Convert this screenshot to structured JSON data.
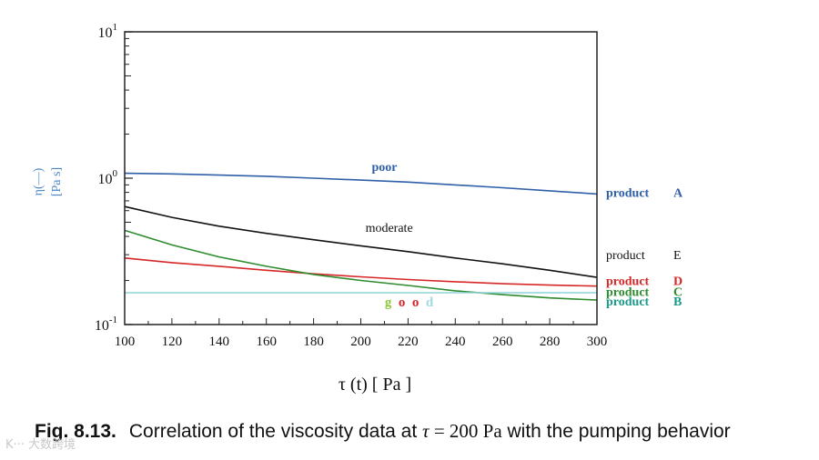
{
  "chart_data": {
    "type": "line",
    "x_scale": "linear",
    "y_scale": "log",
    "xlim": [
      100,
      300
    ],
    "ylim": [
      0.1,
      10
    ],
    "x_ticks": [
      "100",
      "120",
      "140",
      "160",
      "180",
      "200",
      "220",
      "240",
      "260",
      "280",
      "300"
    ],
    "y_ticks": [
      {
        "value": 10,
        "base": "10",
        "exp": "1"
      },
      {
        "value": 1,
        "base": "10",
        "exp": "0"
      },
      {
        "value": 0.1,
        "base": "10",
        "exp": "-1"
      }
    ],
    "ylabel_lines": [
      "η(—)",
      "[Pa s]"
    ],
    "xlabel": "τ  (t)  [ Pa ]",
    "series": [
      {
        "name": "product A",
        "color": "#2f5fa8",
        "x": [
          100,
          120,
          140,
          160,
          180,
          200,
          220,
          240,
          260,
          280,
          300
        ],
        "y": [
          1.08,
          1.07,
          1.05,
          1.03,
          1.0,
          0.97,
          0.94,
          0.9,
          0.86,
          0.82,
          0.78
        ]
      },
      {
        "name": "product E",
        "color": "#111111",
        "x": [
          100,
          120,
          140,
          160,
          180,
          200,
          220,
          240,
          260,
          280,
          300
        ],
        "y": [
          0.64,
          0.54,
          0.47,
          0.42,
          0.38,
          0.345,
          0.315,
          0.285,
          0.26,
          0.235,
          0.21
        ]
      },
      {
        "name": "product D",
        "color": "#d62728",
        "x": [
          100,
          120,
          140,
          160,
          180,
          200,
          220,
          240,
          260,
          280,
          300
        ],
        "y": [
          0.285,
          0.265,
          0.25,
          0.235,
          0.222,
          0.212,
          0.203,
          0.196,
          0.19,
          0.186,
          0.183
        ]
      },
      {
        "name": "product C",
        "color": "#2e8b2e",
        "x": [
          100,
          120,
          140,
          160,
          180,
          200,
          220,
          240,
          260,
          280,
          300
        ],
        "y": [
          0.44,
          0.35,
          0.29,
          0.25,
          0.22,
          0.2,
          0.185,
          0.17,
          0.16,
          0.152,
          0.147
        ]
      },
      {
        "name": "product B",
        "color": "#8fd3d8",
        "x": [
          100,
          120,
          140,
          160,
          180,
          200,
          220,
          240,
          260,
          280,
          300
        ],
        "y": [
          0.165,
          0.165,
          0.165,
          0.165,
          0.165,
          0.165,
          0.165,
          0.165,
          0.165,
          0.165,
          0.165
        ]
      }
    ],
    "annotations": {
      "poor": {
        "text": "poor",
        "color": "#2f5fa8",
        "x": 210,
        "y": 1.12
      },
      "moderate": {
        "text": "moderate",
        "color": "#111111",
        "x": 212,
        "y": 0.43
      },
      "good": [
        {
          "text": "g",
          "color": "#8cc63f"
        },
        {
          "text": "o",
          "color": "#d62728"
        },
        {
          "text": "o",
          "color": "#d62728"
        },
        {
          "text": "d",
          "color": "#9fdde0"
        }
      ],
      "good_pos": {
        "x": 214,
        "y": 0.1335
      }
    },
    "legend": [
      {
        "word": "product",
        "letter": "A",
        "color": "#2f5fa8",
        "bold": true,
        "y": 0.8
      },
      {
        "word": "product",
        "letter": "E",
        "color": "#111111",
        "bold": false,
        "y": 0.3
      },
      {
        "word": "product",
        "letter": "D",
        "color": "#d62728",
        "bold": true,
        "y": 0.2
      },
      {
        "word": "product",
        "letter": "C",
        "color": "#2e8b2e",
        "bold": true,
        "y": 0.168
      },
      {
        "word": "product",
        "letter": "B",
        "color": "#1a9a8a",
        "bold": true,
        "y": 0.145
      }
    ]
  },
  "caption": {
    "fig": "Fig. 8.13.",
    "text_before": "Correlation of the viscosity data at ",
    "tau": "τ",
    "eq": " = ",
    "value": "200",
    "unit": " Pa",
    "text_after": " with the pumping behavior"
  },
  "watermark": "K··· 大数跨境"
}
